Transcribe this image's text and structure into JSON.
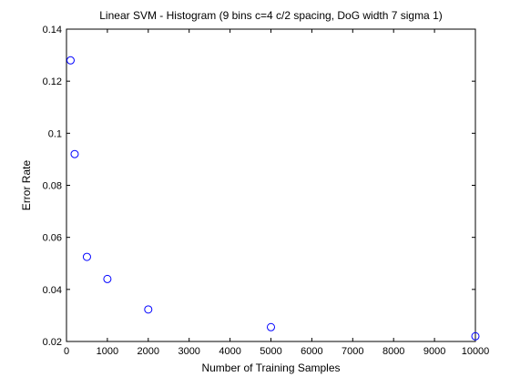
{
  "chart_data": {
    "type": "scatter",
    "title": "Linear SVM - Histogram (9 bins c=4 c/2 spacing, DoG  width 7 sigma 1)",
    "xlabel": "Number of Training Samples",
    "ylabel": "Error Rate",
    "xlim": [
      0,
      10000
    ],
    "ylim": [
      0.02,
      0.14
    ],
    "xticks": [
      0,
      1000,
      2000,
      3000,
      4000,
      5000,
      6000,
      7000,
      8000,
      9000,
      10000
    ],
    "yticks": [
      0.02,
      0.04,
      0.06,
      0.08,
      0.1,
      0.12,
      0.14
    ],
    "xtick_labels": [
      "0",
      "1000",
      "2000",
      "3000",
      "4000",
      "5000",
      "6000",
      "7000",
      "8000",
      "9000",
      "10000"
    ],
    "ytick_labels": [
      "0.02",
      "0.04",
      "0.06",
      "0.08",
      "0.1",
      "0.12",
      "0.14"
    ],
    "grid": false,
    "marker": "open-circle",
    "marker_color": "#0000ff",
    "series": [
      {
        "x": [
          100,
          200,
          500,
          1000,
          2000,
          5000,
          10000
        ],
        "y": [
          0.128,
          0.092,
          0.0525,
          0.044,
          0.0323,
          0.0255,
          0.022
        ]
      }
    ]
  }
}
